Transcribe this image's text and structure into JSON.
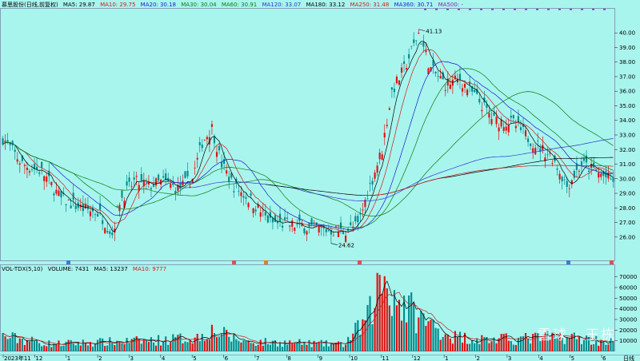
{
  "legend": {
    "title": "慕思股份(日线,前复权)",
    "items": [
      {
        "label": "MA5: 29.87",
        "color": "#000000"
      },
      {
        "label": "MA10: 29.75",
        "color": "#d11a1a"
      },
      {
        "label": "MA20: 30.18",
        "color": "#1a1acc"
      },
      {
        "label": "MA30: 30.04",
        "color": "#0b7b0b"
      },
      {
        "label": "MA60: 30.91",
        "color": "#0b7b0b"
      },
      {
        "label": "MA120: 33.07",
        "color": "#3333cc"
      },
      {
        "label": "MA180: 33.12",
        "color": "#000000"
      },
      {
        "label": "MA250: 31.48",
        "color": "#d11a1a"
      },
      {
        "label": "MA360: 30.71",
        "color": "#1a1acc"
      },
      {
        "label": "MA500: -",
        "color": "#9b1ab0"
      }
    ]
  },
  "volume_legend": {
    "items": [
      {
        "label": "VOL-TDX(5,10)",
        "color": "#000000"
      },
      {
        "label": "VOLUME: 7431",
        "color": "#000000"
      },
      {
        "label": "MA5: 13237",
        "color": "#000000"
      },
      {
        "label": "MA10: 9777",
        "color": "#d11a1a"
      }
    ]
  },
  "watermark": "雪球 · 王栋",
  "chart_data": {
    "type": "candlestick",
    "price_axis": {
      "ticks": [
        26.0,
        27.0,
        28.0,
        29.0,
        30.0,
        31.0,
        32.0,
        33.0,
        34.0,
        35.0,
        36.0,
        37.0,
        38.0,
        39.0,
        40.0
      ],
      "ylim": [
        24.4,
        41.6
      ]
    },
    "volume_axis": {
      "ticks": [
        10000,
        20000,
        30000,
        40000,
        50000,
        60000,
        70000
      ],
      "ylim": [
        0,
        75000
      ]
    },
    "x_labels": [
      "2023年11",
      "12",
      "1",
      "2",
      "3",
      "4",
      "5",
      "6",
      "7",
      "8",
      "9",
      "10",
      "11",
      "12",
      "1",
      "2",
      "3",
      "4",
      "5",
      "6",
      "日线"
    ],
    "annotations": [
      {
        "text": "41.13",
        "kind": "high"
      },
      {
        "text": "24.62",
        "kind": "low"
      }
    ],
    "close_keypoints": [
      {
        "i": 0,
        "close": 32.8
      },
      {
        "i": 8,
        "close": 31.0
      },
      {
        "i": 16,
        "close": 30.5
      },
      {
        "i": 24,
        "close": 28.6
      },
      {
        "i": 32,
        "close": 28.0
      },
      {
        "i": 40,
        "close": 27.6
      },
      {
        "i": 45,
        "close": 26.2
      },
      {
        "i": 48,
        "close": 28.5
      },
      {
        "i": 54,
        "close": 29.8
      },
      {
        "i": 60,
        "close": 29.5
      },
      {
        "i": 66,
        "close": 29.8
      },
      {
        "i": 72,
        "close": 29.3
      },
      {
        "i": 78,
        "close": 30.0
      },
      {
        "i": 82,
        "close": 32.5
      },
      {
        "i": 86,
        "close": 33.5
      },
      {
        "i": 90,
        "close": 31.0
      },
      {
        "i": 95,
        "close": 29.5
      },
      {
        "i": 102,
        "close": 28.5
      },
      {
        "i": 110,
        "close": 27.0
      },
      {
        "i": 120,
        "close": 26.8
      },
      {
        "i": 130,
        "close": 26.5
      },
      {
        "i": 140,
        "close": 26.4
      },
      {
        "i": 146,
        "close": 26.8
      },
      {
        "i": 150,
        "close": 29.0
      },
      {
        "i": 156,
        "close": 32.0
      },
      {
        "i": 160,
        "close": 36.0
      },
      {
        "i": 165,
        "close": 37.5
      },
      {
        "i": 171,
        "close": 40.0
      },
      {
        "i": 176,
        "close": 37.5
      },
      {
        "i": 182,
        "close": 36.5
      },
      {
        "i": 188,
        "close": 36.8
      },
      {
        "i": 195,
        "close": 35.5
      },
      {
        "i": 202,
        "close": 34.0
      },
      {
        "i": 210,
        "close": 33.8
      },
      {
        "i": 218,
        "close": 32.5
      },
      {
        "i": 226,
        "close": 31.5
      },
      {
        "i": 232,
        "close": 29.5
      },
      {
        "i": 238,
        "close": 31.0
      },
      {
        "i": 244,
        "close": 30.5
      },
      {
        "i": 250,
        "close": 29.9
      }
    ],
    "volume_keypoints": [
      {
        "i": 0,
        "v": 14000
      },
      {
        "i": 20,
        "v": 7000
      },
      {
        "i": 45,
        "v": 9000
      },
      {
        "i": 60,
        "v": 10000
      },
      {
        "i": 80,
        "v": 13000
      },
      {
        "i": 85,
        "v": 20000
      },
      {
        "i": 100,
        "v": 9000
      },
      {
        "i": 120,
        "v": 8000
      },
      {
        "i": 140,
        "v": 6500
      },
      {
        "i": 150,
        "v": 30000
      },
      {
        "i": 156,
        "v": 70000
      },
      {
        "i": 162,
        "v": 50000
      },
      {
        "i": 172,
        "v": 30000
      },
      {
        "i": 185,
        "v": 14000
      },
      {
        "i": 200,
        "v": 11000
      },
      {
        "i": 215,
        "v": 12000
      },
      {
        "i": 230,
        "v": 14000
      },
      {
        "i": 250,
        "v": 9000
      }
    ]
  }
}
